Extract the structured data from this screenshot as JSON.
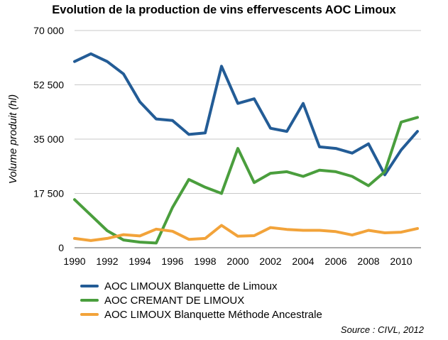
{
  "chart_data": {
    "type": "line",
    "title": "Evolution de la production de vins effervescents AOC Limoux",
    "ylabel": "Volume produit (hl)",
    "xlabel": "",
    "ylim": [
      0,
      70000
    ],
    "xlim": [
      1990,
      2011
    ],
    "yticks": [
      0,
      17500,
      35000,
      52500,
      70000
    ],
    "ytick_labels": [
      "0",
      "17 500",
      "35 000",
      "52 500",
      "70 000"
    ],
    "xticks": [
      1990,
      1992,
      1994,
      1996,
      1998,
      2000,
      2002,
      2004,
      2006,
      2008,
      2010
    ],
    "xtick_labels": [
      "1990",
      "1992",
      "1994",
      "1996",
      "1998",
      "2000",
      "2002",
      "2004",
      "2006",
      "2008",
      "2010"
    ],
    "grid": "horizontal",
    "legend_position": "bottom",
    "x": [
      1990,
      1991,
      1992,
      1993,
      1994,
      1995,
      1996,
      1997,
      1998,
      1999,
      2000,
      2001,
      2002,
      2003,
      2004,
      2005,
      2006,
      2007,
      2008,
      2009,
      2010,
      2011
    ],
    "series": [
      {
        "name": "AOC LIMOUX Blanquette de Limoux",
        "color": "#235c96",
        "values": [
          60000,
          62500,
          60000,
          56000,
          47000,
          41500,
          41000,
          36500,
          37000,
          58500,
          46500,
          48000,
          38500,
          37500,
          46500,
          32500,
          32000,
          30500,
          33500,
          23500,
          31500,
          37500
        ]
      },
      {
        "name": "AOC CREMANT DE LIMOUX",
        "color": "#4a9e3d",
        "values": [
          15500,
          10500,
          5500,
          2500,
          1800,
          1500,
          13000,
          22000,
          19500,
          17500,
          32000,
          21000,
          24000,
          24500,
          23000,
          25000,
          24500,
          23000,
          20000,
          24500,
          40500,
          42000
        ]
      },
      {
        "name": "AOC LIMOUX Blanquette Méthode Ancestrale",
        "color": "#f2a33a",
        "values": [
          3000,
          2300,
          3000,
          4200,
          3800,
          6000,
          5300,
          2700,
          3000,
          7200,
          3700,
          3900,
          6500,
          5900,
          5600,
          5600,
          5200,
          4100,
          5600,
          4800,
          5000,
          6200
        ]
      }
    ],
    "source": "Source : CIVL, 2012"
  }
}
